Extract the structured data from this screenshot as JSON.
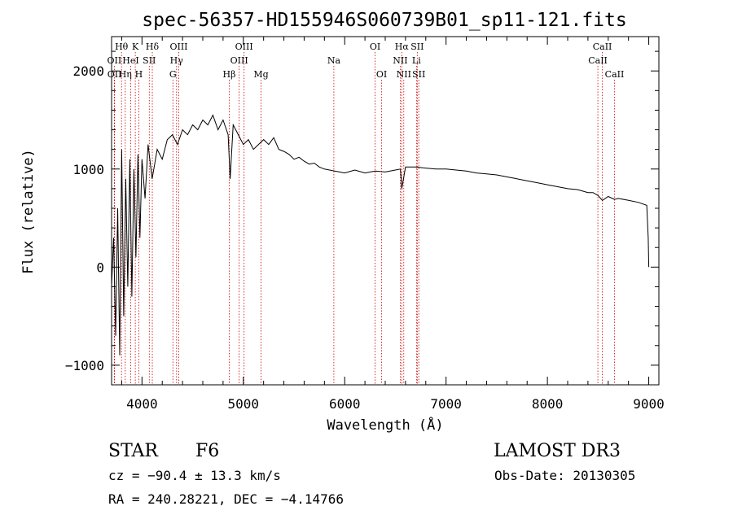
{
  "chart_data": {
    "type": "line",
    "title": "spec-56357-HD155946S060739B01_sp11-121.fits",
    "xlabel": "Wavelength (Å)",
    "ylabel": "Flux (relative)",
    "xlim": [
      3700,
      9100
    ],
    "ylim": [
      -1200,
      2350
    ],
    "x_ticks": [
      4000,
      5000,
      6000,
      7000,
      8000,
      9000
    ],
    "x_tick_labels": [
      "4000",
      "5000",
      "6000",
      "7000",
      "8000",
      "9000"
    ],
    "y_ticks": [
      -1000,
      0,
      1000,
      2000
    ],
    "y_tick_labels": [
      "−1000",
      "0",
      "1000",
      "2000"
    ],
    "series": [
      {
        "name": "flux",
        "x": [
          3700,
          3720,
          3740,
          3760,
          3780,
          3800,
          3820,
          3840,
          3860,
          3880,
          3900,
          3920,
          3940,
          3960,
          3980,
          4000,
          4030,
          4060,
          4100,
          4150,
          4200,
          4250,
          4300,
          4350,
          4400,
          4450,
          4500,
          4550,
          4600,
          4650,
          4700,
          4750,
          4800,
          4850,
          4870,
          4900,
          4950,
          5000,
          5050,
          5100,
          5150,
          5200,
          5250,
          5300,
          5350,
          5400,
          5450,
          5500,
          5550,
          5600,
          5650,
          5700,
          5750,
          5800,
          5850,
          5900,
          5950,
          6000,
          6100,
          6200,
          6300,
          6400,
          6500,
          6550,
          6563,
          6600,
          6700,
          6800,
          6900,
          7000,
          7100,
          7200,
          7300,
          7400,
          7500,
          7600,
          7700,
          7800,
          7900,
          8000,
          8100,
          8200,
          8300,
          8400,
          8450,
          8500,
          8542,
          8600,
          8662,
          8700,
          8800,
          8900,
          8980,
          8995,
          9000
        ],
        "values": [
          -200,
          300,
          -700,
          600,
          -900,
          1200,
          -500,
          900,
          -200,
          1100,
          -300,
          1000,
          100,
          1150,
          300,
          1100,
          700,
          1250,
          900,
          1200,
          1100,
          1300,
          1350,
          1250,
          1400,
          1350,
          1450,
          1400,
          1500,
          1450,
          1550,
          1400,
          1500,
          1350,
          900,
          1450,
          1350,
          1250,
          1300,
          1200,
          1250,
          1300,
          1250,
          1320,
          1200,
          1180,
          1150,
          1100,
          1120,
          1080,
          1050,
          1060,
          1020,
          1000,
          990,
          980,
          970,
          960,
          990,
          960,
          980,
          970,
          990,
          1000,
          800,
          1020,
          1020,
          1010,
          1000,
          1000,
          990,
          980,
          960,
          950,
          940,
          920,
          900,
          880,
          860,
          840,
          820,
          800,
          790,
          760,
          760,
          730,
          680,
          720,
          690,
          700,
          680,
          660,
          630,
          300,
          0
        ]
      }
    ],
    "line_markers": [
      {
        "label": "Hθ",
        "x": 3798,
        "row": 1
      },
      {
        "label": "OII",
        "x": 3727,
        "row": 2
      },
      {
        "label": "OII",
        "x": 3729,
        "row": 3
      },
      {
        "label": "Hη",
        "x": 3835,
        "row": 3
      },
      {
        "label": "K",
        "x": 3934,
        "row": 1
      },
      {
        "label": "HeI",
        "x": 3889,
        "row": 2
      },
      {
        "label": "H",
        "x": 3969,
        "row": 3
      },
      {
        "label": "SII",
        "x": 4072,
        "row": 2
      },
      {
        "label": "Hδ",
        "x": 4102,
        "row": 1
      },
      {
        "label": "OIII",
        "x": 4363,
        "row": 1
      },
      {
        "label": "Hγ",
        "x": 4341,
        "row": 2
      },
      {
        "label": "G",
        "x": 4305,
        "row": 3
      },
      {
        "label": "Hβ",
        "x": 4861,
        "row": 3
      },
      {
        "label": "OIII",
        "x": 5007,
        "row": 1
      },
      {
        "label": "OIII",
        "x": 4959,
        "row": 2
      },
      {
        "label": "Mg",
        "x": 5175,
        "row": 3
      },
      {
        "label": "Na",
        "x": 5893,
        "row": 2
      },
      {
        "label": "OI",
        "x": 6300,
        "row": 1
      },
      {
        "label": "OI",
        "x": 6364,
        "row": 3
      },
      {
        "label": "Hα",
        "x": 6563,
        "row": 1
      },
      {
        "label": "SII",
        "x": 6716,
        "row": 1
      },
      {
        "label": "NII",
        "x": 6548,
        "row": 2
      },
      {
        "label": "Li",
        "x": 6708,
        "row": 2
      },
      {
        "label": "NII",
        "x": 6583,
        "row": 3
      },
      {
        "label": "SII",
        "x": 6731,
        "row": 3
      },
      {
        "label": "CaII",
        "x": 8542,
        "row": 1
      },
      {
        "label": "CaII",
        "x": 8498,
        "row": 2
      },
      {
        "label": "CaII",
        "x": 8662,
        "row": 3
      }
    ]
  },
  "info": {
    "object_type": "STAR",
    "subclass": "F6",
    "survey": "LAMOST DR3",
    "cz": "cz = −90.4 ± 13.3 km/s",
    "obs_date": "Obs-Date: 20130305",
    "coords": "RA = 240.28221, DEC =  −4.14766"
  },
  "colors": {
    "spectrum": "#000000",
    "marker_line": "#cc0000",
    "axes": "#000000"
  }
}
